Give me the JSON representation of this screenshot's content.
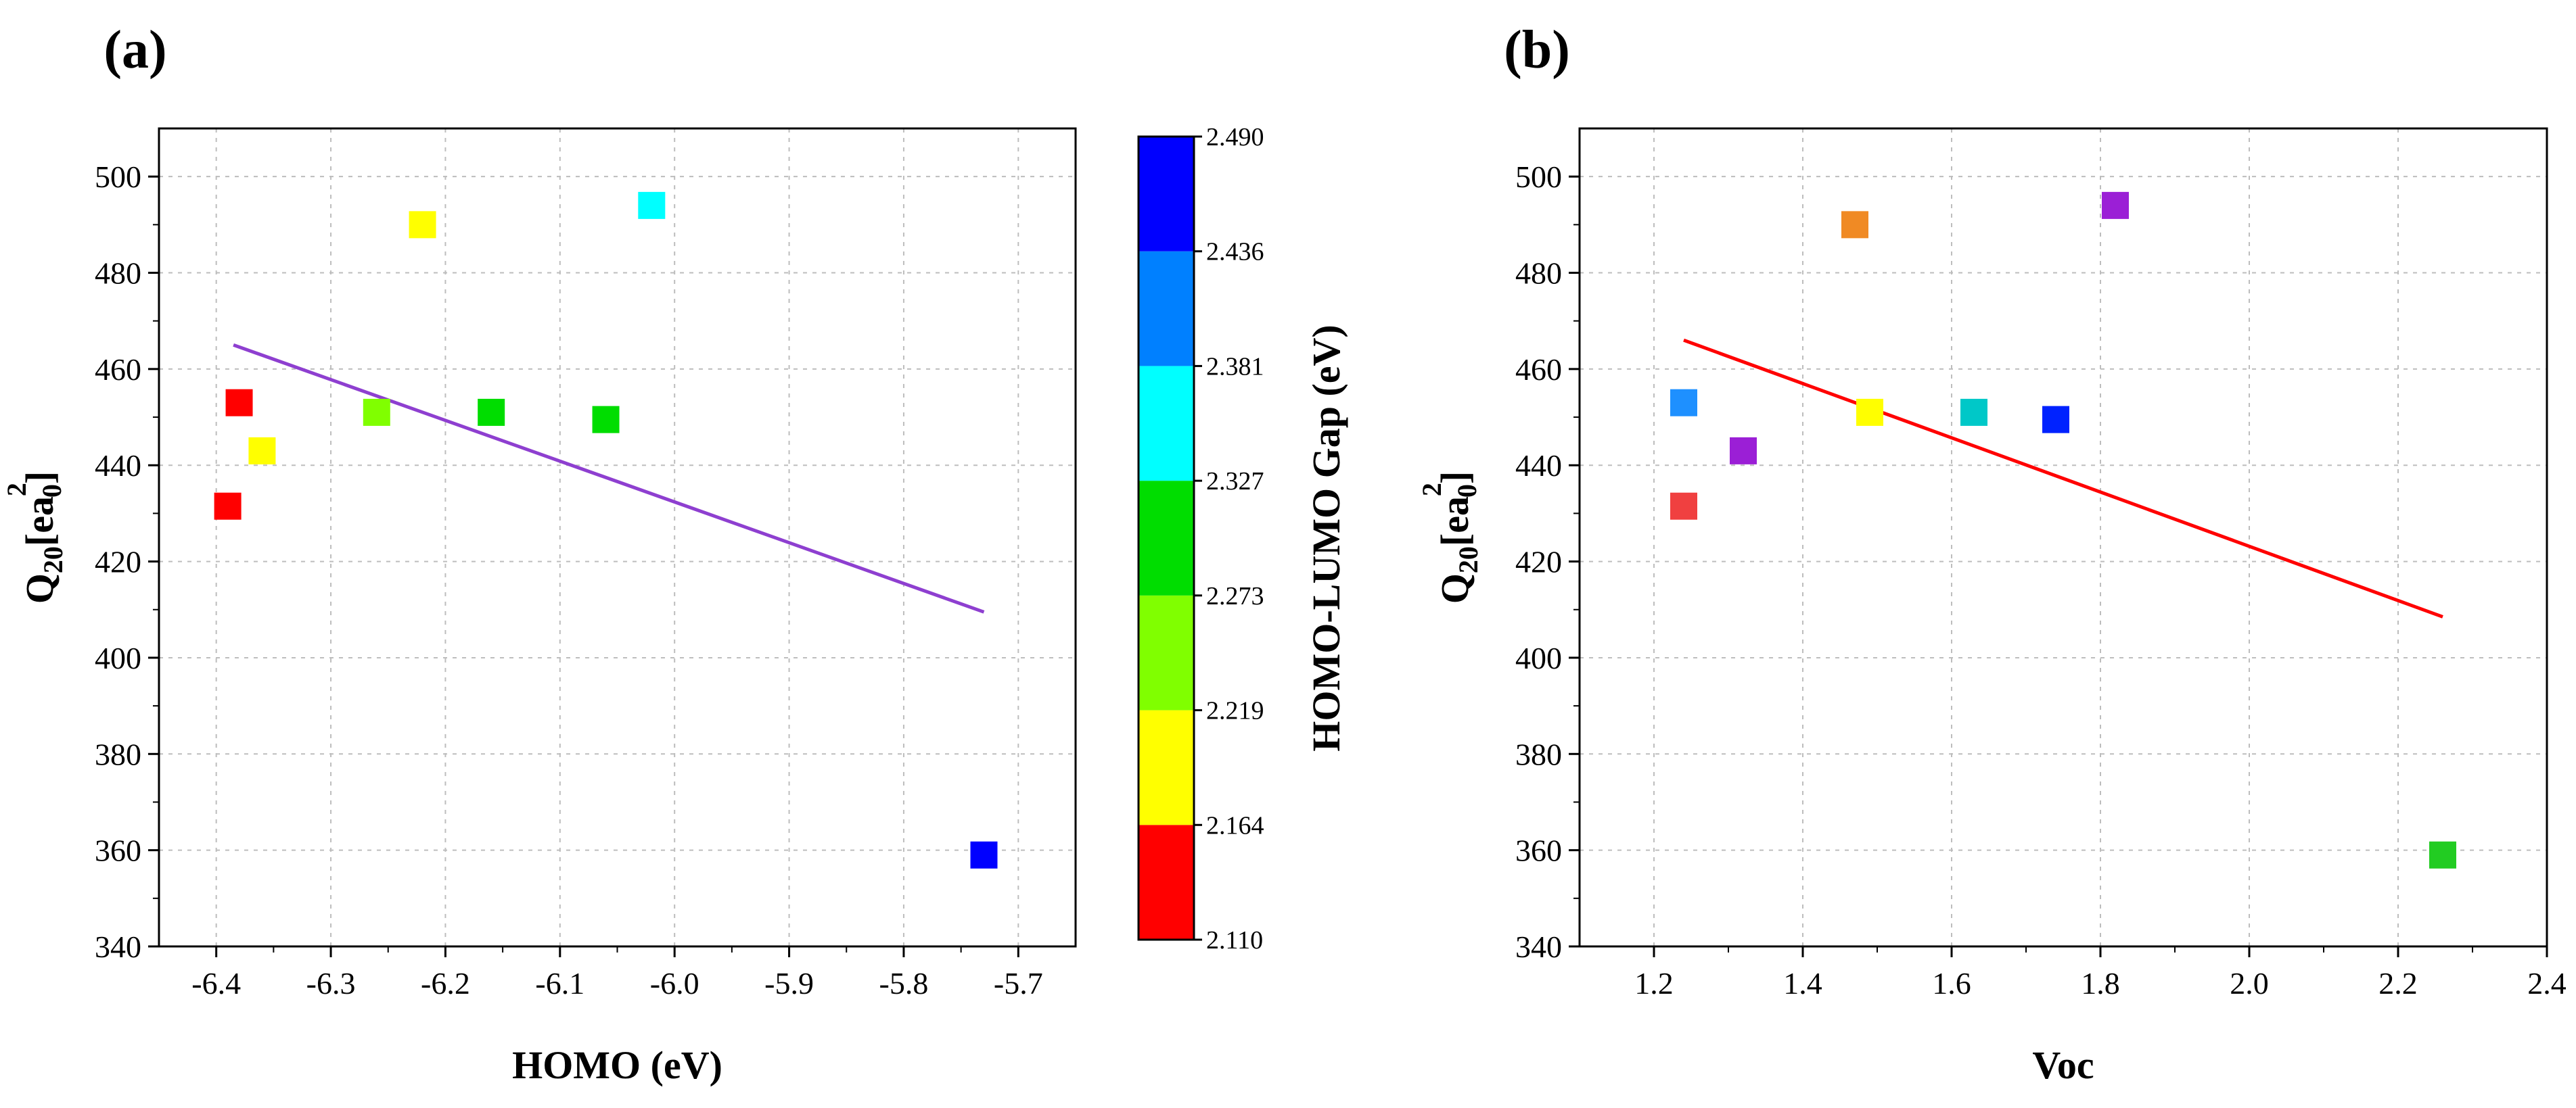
{
  "chart_data": [
    {
      "type": "scatter",
      "panel_label": "(a)",
      "xlabel": "HOMO (eV)",
      "ylabel_main": "Q",
      "ylabel_sub": "20",
      "ylabel_bracket_open": "[ea",
      "ylabel_sup": "2",
      "ylabel_sub2": "0",
      "ylabel_bracket_close": "]",
      "xlim": [
        -6.45,
        -5.65
      ],
      "ylim": [
        340,
        510
      ],
      "xticks": [
        -6.4,
        -6.3,
        -6.2,
        -6.1,
        -6.0,
        -5.9,
        -5.8,
        -5.7
      ],
      "xtick_labels": [
        "-6.4",
        "-6.3",
        "-6.2",
        "-6.1",
        "-6.0",
        "-5.9",
        "-5.8",
        "-5.7"
      ],
      "yticks": [
        340,
        360,
        380,
        400,
        420,
        440,
        460,
        480,
        500
      ],
      "ytick_labels": [
        "340",
        "360",
        "380",
        "400",
        "420",
        "440",
        "460",
        "480",
        "500"
      ],
      "points": [
        {
          "x": -6.39,
          "y": 431.5,
          "color": "#ff0000"
        },
        {
          "x": -6.38,
          "y": 453.0,
          "color": "#ff0000"
        },
        {
          "x": -6.36,
          "y": 443.0,
          "color": "#ffff00"
        },
        {
          "x": -6.26,
          "y": 451.0,
          "color": "#80ff00"
        },
        {
          "x": -6.22,
          "y": 490.0,
          "color": "#ffff00"
        },
        {
          "x": -6.16,
          "y": 451.0,
          "color": "#00dd00"
        },
        {
          "x": -6.06,
          "y": 449.5,
          "color": "#00dd00"
        },
        {
          "x": -6.02,
          "y": 494.0,
          "color": "#00ffff"
        },
        {
          "x": -5.73,
          "y": 359.0,
          "color": "#0000ff"
        }
      ],
      "fit_line": {
        "x": [
          -6.385,
          -5.73
        ],
        "y": [
          465.0,
          409.5
        ],
        "color": "#8e3fd0"
      },
      "colorbar": {
        "title": "HOMO-LUMO Gap (eV)",
        "range": [
          2.11,
          2.49
        ],
        "tick_labels": [
          "2.110",
          "2.164",
          "2.219",
          "2.273",
          "2.327",
          "2.381",
          "2.436",
          "2.490"
        ],
        "colors": [
          "#ff0000",
          "#ffff00",
          "#80ff00",
          "#00dd00",
          "#00ffff",
          "#0080ff",
          "#0000ff"
        ]
      }
    },
    {
      "type": "scatter",
      "panel_label": "(b)",
      "xlabel": "Voc",
      "ylabel_main": "Q",
      "ylabel_sub": "20",
      "ylabel_bracket_open": "[ea",
      "ylabel_sup": "2",
      "ylabel_sub2": "0",
      "ylabel_bracket_close": "]",
      "xlim": [
        1.1,
        2.4
      ],
      "ylim": [
        340,
        510
      ],
      "xticks": [
        1.2,
        1.4,
        1.6,
        1.8,
        2.0,
        2.2,
        2.4
      ],
      "xtick_labels": [
        "1.2",
        "1.4",
        "1.6",
        "1.8",
        "2.0",
        "2.2",
        "2.4"
      ],
      "yticks": [
        340,
        360,
        380,
        400,
        420,
        440,
        460,
        480,
        500
      ],
      "ytick_labels": [
        "340",
        "360",
        "380",
        "400",
        "420",
        "440",
        "460",
        "480",
        "500"
      ],
      "points": [
        {
          "x": 1.24,
          "y": 431.5,
          "color": "#f04040"
        },
        {
          "x": 1.24,
          "y": 453.0,
          "color": "#1e90ff"
        },
        {
          "x": 1.32,
          "y": 443.0,
          "color": "#9b1fd6"
        },
        {
          "x": 1.47,
          "y": 490.0,
          "color": "#f08a24"
        },
        {
          "x": 1.49,
          "y": 451.0,
          "color": "#ffff00"
        },
        {
          "x": 1.63,
          "y": 451.0,
          "color": "#00c8c8"
        },
        {
          "x": 1.74,
          "y": 449.5,
          "color": "#0022ff"
        },
        {
          "x": 1.82,
          "y": 494.0,
          "color": "#9b1fd6"
        },
        {
          "x": 2.26,
          "y": 359.0,
          "color": "#22cc22"
        }
      ],
      "fit_line": {
        "x": [
          1.24,
          2.26
        ],
        "y": [
          466.0,
          408.5
        ],
        "color": "#ff0000"
      }
    }
  ]
}
